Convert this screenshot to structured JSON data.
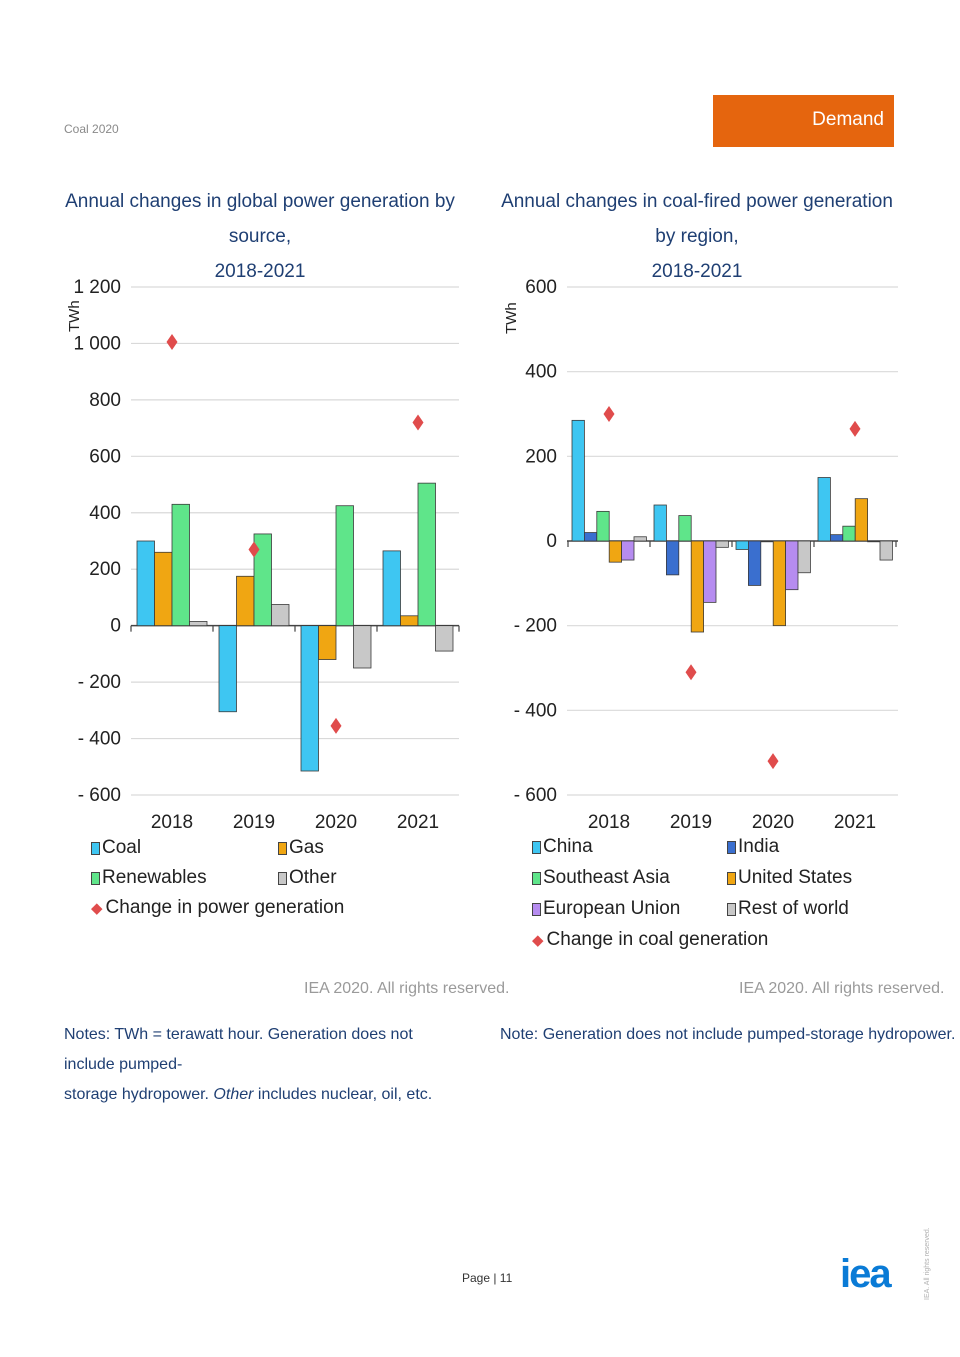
{
  "header": {
    "report_title": "Coal 2020",
    "section": "Demand"
  },
  "colors": {
    "coal": "#3ec6f2",
    "gas": "#f0a612",
    "renewables": "#5fe58a",
    "other": "#c8c8c8",
    "china": "#3ec6f2",
    "india": "#3a6fcf",
    "southeast_asia": "#5fe58a",
    "united_states": "#f0a612",
    "european_union": "#b68cf0",
    "rest_of_world": "#c8c8c8",
    "marker": "#e04c4c",
    "title": "#1f3f73",
    "accent": "#e5650e"
  },
  "chart_data": [
    {
      "type": "bar",
      "title": "Annual changes in global power generation by source, 2018-2021",
      "title_lines": [
        "Annual changes in global power generation by source,",
        "2018-2021"
      ],
      "ylabel": "TWh",
      "ylim": [
        -600,
        1200
      ],
      "yticks": [
        1200,
        1000,
        800,
        600,
        400,
        200,
        0,
        -200,
        -400,
        -600
      ],
      "ytick_labels": [
        "1 200",
        "1 000",
        "800",
        "600",
        "400",
        "200",
        "0",
        "- 200",
        "- 400",
        "- 600"
      ],
      "categories": [
        "2018",
        "2019",
        "2020",
        "2021"
      ],
      "series": [
        {
          "name": "Coal",
          "color_key": "coal",
          "values": [
            300,
            -305,
            -515,
            265
          ]
        },
        {
          "name": "Gas",
          "color_key": "gas",
          "values": [
            260,
            175,
            -120,
            35
          ]
        },
        {
          "name": "Renewables",
          "color_key": "renewables",
          "values": [
            430,
            325,
            425,
            505
          ]
        },
        {
          "name": "Other",
          "color_key": "other",
          "values": [
            15,
            75,
            -150,
            -90
          ]
        }
      ],
      "markers": {
        "name": "Change in power generation",
        "values": [
          1005,
          270,
          -355,
          720
        ]
      },
      "legend": [
        "Coal",
        "Gas",
        "Renewables",
        "Other",
        "Change in power generation"
      ],
      "grid": true
    },
    {
      "type": "bar",
      "title": "Annual changes in coal-fired power generation by region, 2018-2021",
      "title_lines": [
        "Annual changes in coal-fired power generation by region,",
        "2018-2021"
      ],
      "ylabel": "TWh",
      "ylim": [
        -600,
        600
      ],
      "yticks": [
        600,
        400,
        200,
        0,
        -200,
        -400,
        -600
      ],
      "ytick_labels": [
        "600",
        "400",
        "200",
        "0",
        "- 200",
        "- 400",
        "- 600"
      ],
      "categories": [
        "2018",
        "2019",
        "2020",
        "2021"
      ],
      "series": [
        {
          "name": "China",
          "color_key": "china",
          "values": [
            285,
            85,
            -20,
            150
          ]
        },
        {
          "name": "India",
          "color_key": "india",
          "values": [
            20,
            -80,
            -105,
            15
          ]
        },
        {
          "name": "Southeast Asia",
          "color_key": "southeast_asia",
          "values": [
            70,
            60,
            0,
            35
          ]
        },
        {
          "name": "United States",
          "color_key": "united_states",
          "values": [
            -50,
            -215,
            -200,
            100
          ]
        },
        {
          "name": "European Union",
          "color_key": "european_union",
          "values": [
            -45,
            -145,
            -115,
            0
          ]
        },
        {
          "name": "Rest of world",
          "color_key": "rest_of_world",
          "values": [
            10,
            -15,
            -75,
            -45
          ]
        }
      ],
      "markers": {
        "name": "Change in coal generation",
        "values": [
          300,
          -310,
          -520,
          265
        ]
      },
      "legend": [
        "China",
        "India",
        "Southeast Asia",
        "United States",
        "European Union",
        "Rest of world",
        "Change in coal generation"
      ],
      "grid": true
    }
  ],
  "credits": {
    "left": "IEA 2020. All rights reserved.",
    "right": "IEA 2020. All rights reserved."
  },
  "notes": {
    "left_prefix": "Notes: TWh = terawatt hour. Generation does not include pumped-",
    "left_line2_start": "storage hydropower. ",
    "left_italic": "Other",
    "left_line2_end": " includes nuclear, oil, etc.",
    "right": "Note: Generation does not include pumped-storage hydropower."
  },
  "footer": {
    "page_label": "Page | 11",
    "logo": "iea",
    "vertical_rights": "IEA. All rights reserved."
  }
}
